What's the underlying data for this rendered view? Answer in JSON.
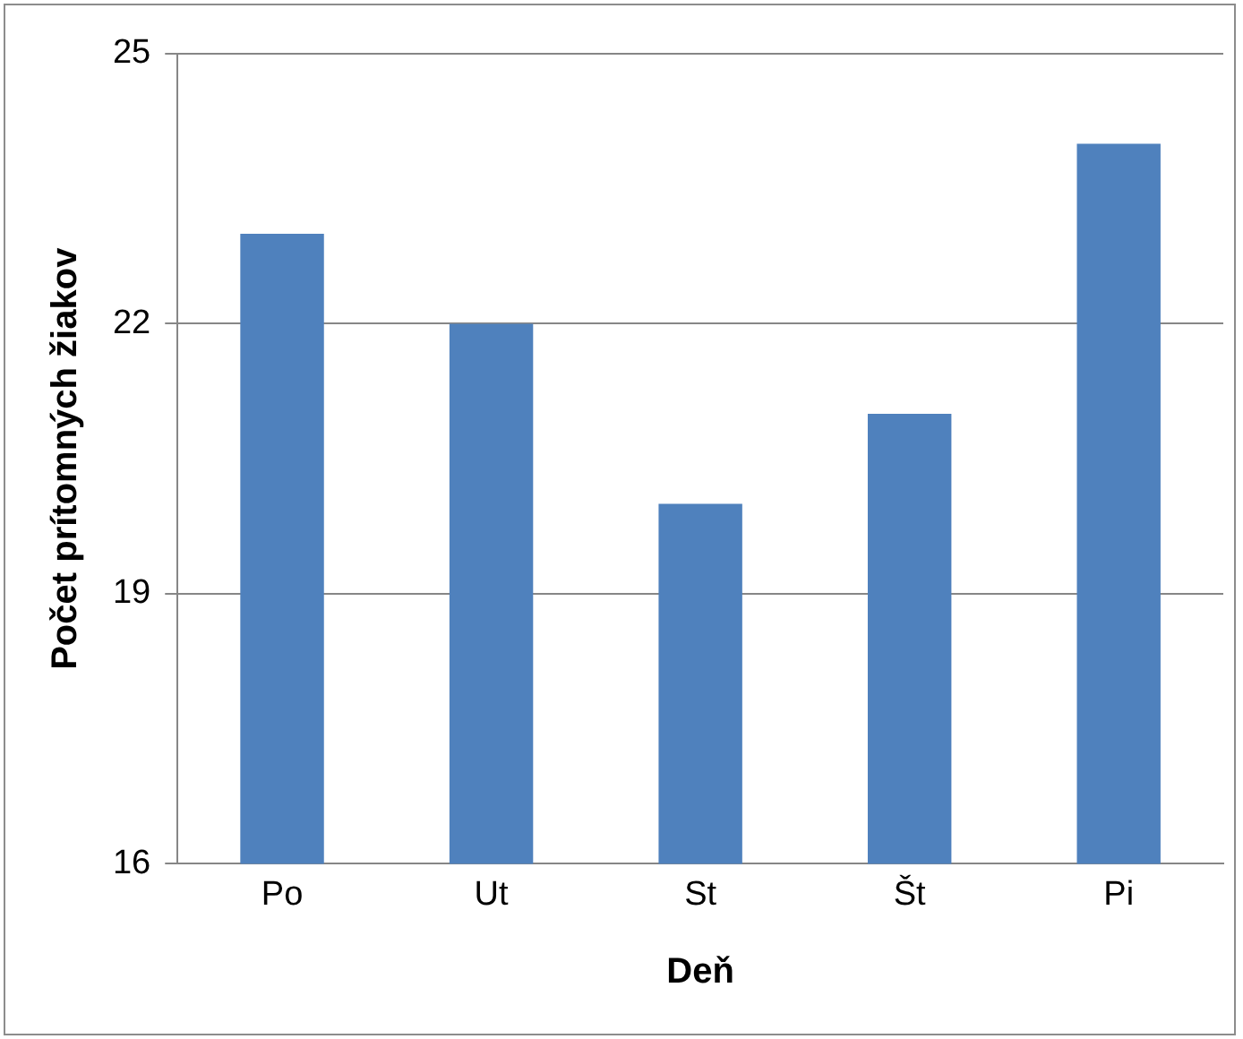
{
  "chart_data": {
    "type": "bar",
    "xlabel": "Deň",
    "ylabel": "Počet prítomných žiakov",
    "categories": [
      "Po",
      "Ut",
      "St",
      "Št",
      "Pi"
    ],
    "values": [
      23,
      22,
      20,
      21,
      24
    ],
    "color": "#4f81bd",
    "ylim": [
      16,
      25
    ],
    "yticks": [
      16,
      19,
      22,
      25
    ],
    "grid": "y",
    "legend": false
  }
}
